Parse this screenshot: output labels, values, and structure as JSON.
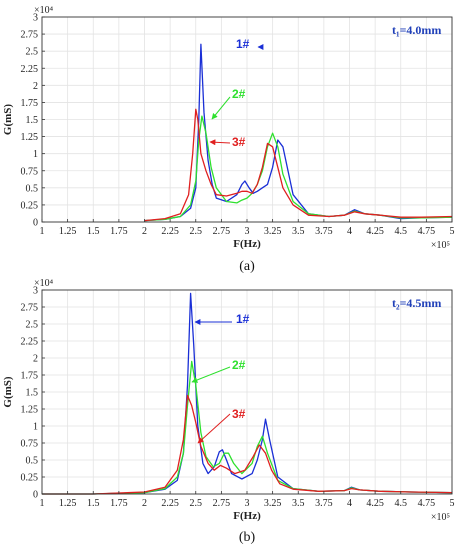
{
  "chart_data": [
    {
      "id": "a",
      "type": "line",
      "caption": "(a)",
      "thickness_label": "t₁=4.0mm",
      "xlabel": "F(Hz)",
      "ylabel": "G(mS)",
      "x_multiplier": "×10⁵",
      "y_multiplier": "×10⁴",
      "xlim": [
        1,
        5
      ],
      "ylim": [
        0,
        3
      ],
      "xticks": [
        "1",
        "1.25",
        "1.5",
        "1.75",
        "2",
        "2.25",
        "2.5",
        "2.75",
        "3",
        "3.25",
        "3.5",
        "3.75",
        "4",
        "4.25",
        "4.5",
        "4.75",
        "5"
      ],
      "yticks": [
        "0",
        "0.25",
        "0.5",
        "0.75",
        "1",
        "1.25",
        "1.5",
        "1.75",
        "2",
        "2.25",
        "2.5",
        "2.75",
        "3"
      ],
      "grid": true,
      "series": [
        {
          "name": "1#",
          "color": "#1a2fd6",
          "x": [
            2.0,
            2.2,
            2.35,
            2.45,
            2.5,
            2.53,
            2.55,
            2.58,
            2.62,
            2.66,
            2.7,
            2.8,
            2.9,
            2.95,
            2.98,
            3.02,
            3.06,
            3.1,
            3.15,
            3.2,
            3.25,
            3.3,
            3.35,
            3.45,
            3.6,
            3.8,
            3.95,
            4.05,
            4.15,
            4.3,
            4.5,
            4.7,
            5.0
          ],
          "y": [
            0.02,
            0.04,
            0.08,
            0.2,
            0.5,
            1.5,
            2.6,
            1.6,
            0.9,
            0.55,
            0.35,
            0.3,
            0.4,
            0.55,
            0.6,
            0.5,
            0.42,
            0.45,
            0.5,
            0.55,
            0.8,
            1.2,
            1.1,
            0.4,
            0.12,
            0.08,
            0.1,
            0.18,
            0.12,
            0.1,
            0.05,
            0.06,
            0.07
          ]
        },
        {
          "name": "2#",
          "color": "#2ee02e",
          "x": [
            2.0,
            2.2,
            2.35,
            2.45,
            2.5,
            2.53,
            2.56,
            2.6,
            2.65,
            2.7,
            2.8,
            2.9,
            2.95,
            3.0,
            3.05,
            3.1,
            3.15,
            3.2,
            3.25,
            3.3,
            3.35,
            3.45,
            3.6,
            3.8,
            3.95,
            4.05,
            4.15,
            4.3,
            4.5,
            4.7,
            5.0
          ],
          "y": [
            0.02,
            0.04,
            0.08,
            0.25,
            0.6,
            1.2,
            1.55,
            1.3,
            0.8,
            0.5,
            0.3,
            0.28,
            0.32,
            0.35,
            0.42,
            0.55,
            0.75,
            1.1,
            1.3,
            1.1,
            0.7,
            0.3,
            0.12,
            0.08,
            0.1,
            0.16,
            0.12,
            0.1,
            0.06,
            0.06,
            0.07
          ]
        },
        {
          "name": "3#",
          "color": "#e02020",
          "x": [
            2.0,
            2.2,
            2.35,
            2.43,
            2.47,
            2.5,
            2.52,
            2.55,
            2.6,
            2.65,
            2.7,
            2.8,
            2.9,
            2.95,
            3.0,
            3.05,
            3.1,
            3.15,
            3.2,
            3.25,
            3.3,
            3.35,
            3.45,
            3.6,
            3.8,
            3.95,
            4.05,
            4.15,
            4.3,
            4.5,
            4.7,
            5.0
          ],
          "y": [
            0.02,
            0.05,
            0.12,
            0.4,
            1.0,
            1.65,
            1.5,
            1.0,
            0.75,
            0.55,
            0.4,
            0.38,
            0.42,
            0.45,
            0.45,
            0.42,
            0.55,
            0.8,
            1.15,
            1.1,
            0.8,
            0.5,
            0.25,
            0.1,
            0.08,
            0.1,
            0.15,
            0.12,
            0.1,
            0.07,
            0.07,
            0.08
          ]
        }
      ]
    },
    {
      "id": "b",
      "type": "line",
      "caption": "(b)",
      "thickness_label": "t₂=4.5mm",
      "xlabel": "F(Hz)",
      "ylabel": "G(mS)",
      "x_multiplier": "×10⁵",
      "y_multiplier": "×10⁴",
      "xlim": [
        1,
        5
      ],
      "ylim": [
        0,
        3
      ],
      "xticks": [
        "1",
        "1.25",
        "1.5",
        "1.75",
        "2",
        "2.25",
        "2.5",
        "2.75",
        "3",
        "3.25",
        "3.5",
        "3.75",
        "4",
        "4.25",
        "4.5",
        "4.75",
        "5"
      ],
      "yticks": [
        "0",
        "0.25",
        "0.5",
        "0.75",
        "1",
        "1.25",
        "1.5",
        "1.75",
        "2",
        "2.25",
        "2.5",
        "2.75",
        "3"
      ],
      "grid": true,
      "series": [
        {
          "name": "1#",
          "color": "#1a2fd6",
          "x": [
            1.0,
            1.5,
            2.0,
            2.2,
            2.32,
            2.38,
            2.42,
            2.45,
            2.48,
            2.52,
            2.57,
            2.62,
            2.68,
            2.73,
            2.76,
            2.8,
            2.85,
            2.95,
            3.05,
            3.1,
            3.15,
            3.18,
            3.22,
            3.3,
            3.45,
            3.7,
            3.95,
            4.02,
            4.1,
            4.3,
            4.6,
            5.0
          ],
          "y": [
            0.0,
            0.0,
            0.02,
            0.07,
            0.2,
            0.6,
            1.6,
            2.95,
            2.2,
            1.0,
            0.45,
            0.3,
            0.4,
            0.62,
            0.65,
            0.5,
            0.3,
            0.22,
            0.3,
            0.5,
            0.8,
            1.1,
            0.8,
            0.25,
            0.08,
            0.04,
            0.05,
            0.1,
            0.06,
            0.04,
            0.03,
            0.02
          ]
        },
        {
          "name": "2#",
          "color": "#2ee02e",
          "x": [
            1.0,
            1.5,
            2.0,
            2.2,
            2.32,
            2.38,
            2.42,
            2.46,
            2.5,
            2.55,
            2.6,
            2.67,
            2.73,
            2.78,
            2.82,
            2.87,
            2.95,
            3.05,
            3.1,
            3.15,
            3.2,
            3.3,
            3.45,
            3.7,
            3.95,
            4.02,
            4.1,
            4.3,
            4.6,
            5.0
          ],
          "y": [
            0.0,
            0.0,
            0.02,
            0.08,
            0.25,
            0.6,
            1.3,
            1.95,
            1.6,
            0.9,
            0.55,
            0.4,
            0.45,
            0.6,
            0.6,
            0.45,
            0.3,
            0.45,
            0.7,
            0.85,
            0.6,
            0.2,
            0.08,
            0.04,
            0.05,
            0.09,
            0.06,
            0.04,
            0.03,
            0.02
          ]
        },
        {
          "name": "3#",
          "color": "#e02020",
          "x": [
            1.0,
            1.5,
            2.0,
            2.2,
            2.32,
            2.38,
            2.42,
            2.46,
            2.5,
            2.55,
            2.62,
            2.68,
            2.74,
            2.8,
            2.88,
            2.98,
            3.06,
            3.12,
            3.18,
            3.24,
            3.32,
            3.45,
            3.7,
            3.95,
            4.02,
            4.1,
            4.3,
            4.6,
            5.0
          ],
          "y": [
            0.0,
            0.0,
            0.03,
            0.1,
            0.35,
            0.8,
            1.45,
            1.3,
            1.05,
            0.7,
            0.45,
            0.35,
            0.42,
            0.38,
            0.3,
            0.35,
            0.55,
            0.72,
            0.6,
            0.35,
            0.15,
            0.07,
            0.04,
            0.05,
            0.08,
            0.06,
            0.04,
            0.03,
            0.02
          ]
        }
      ]
    }
  ]
}
